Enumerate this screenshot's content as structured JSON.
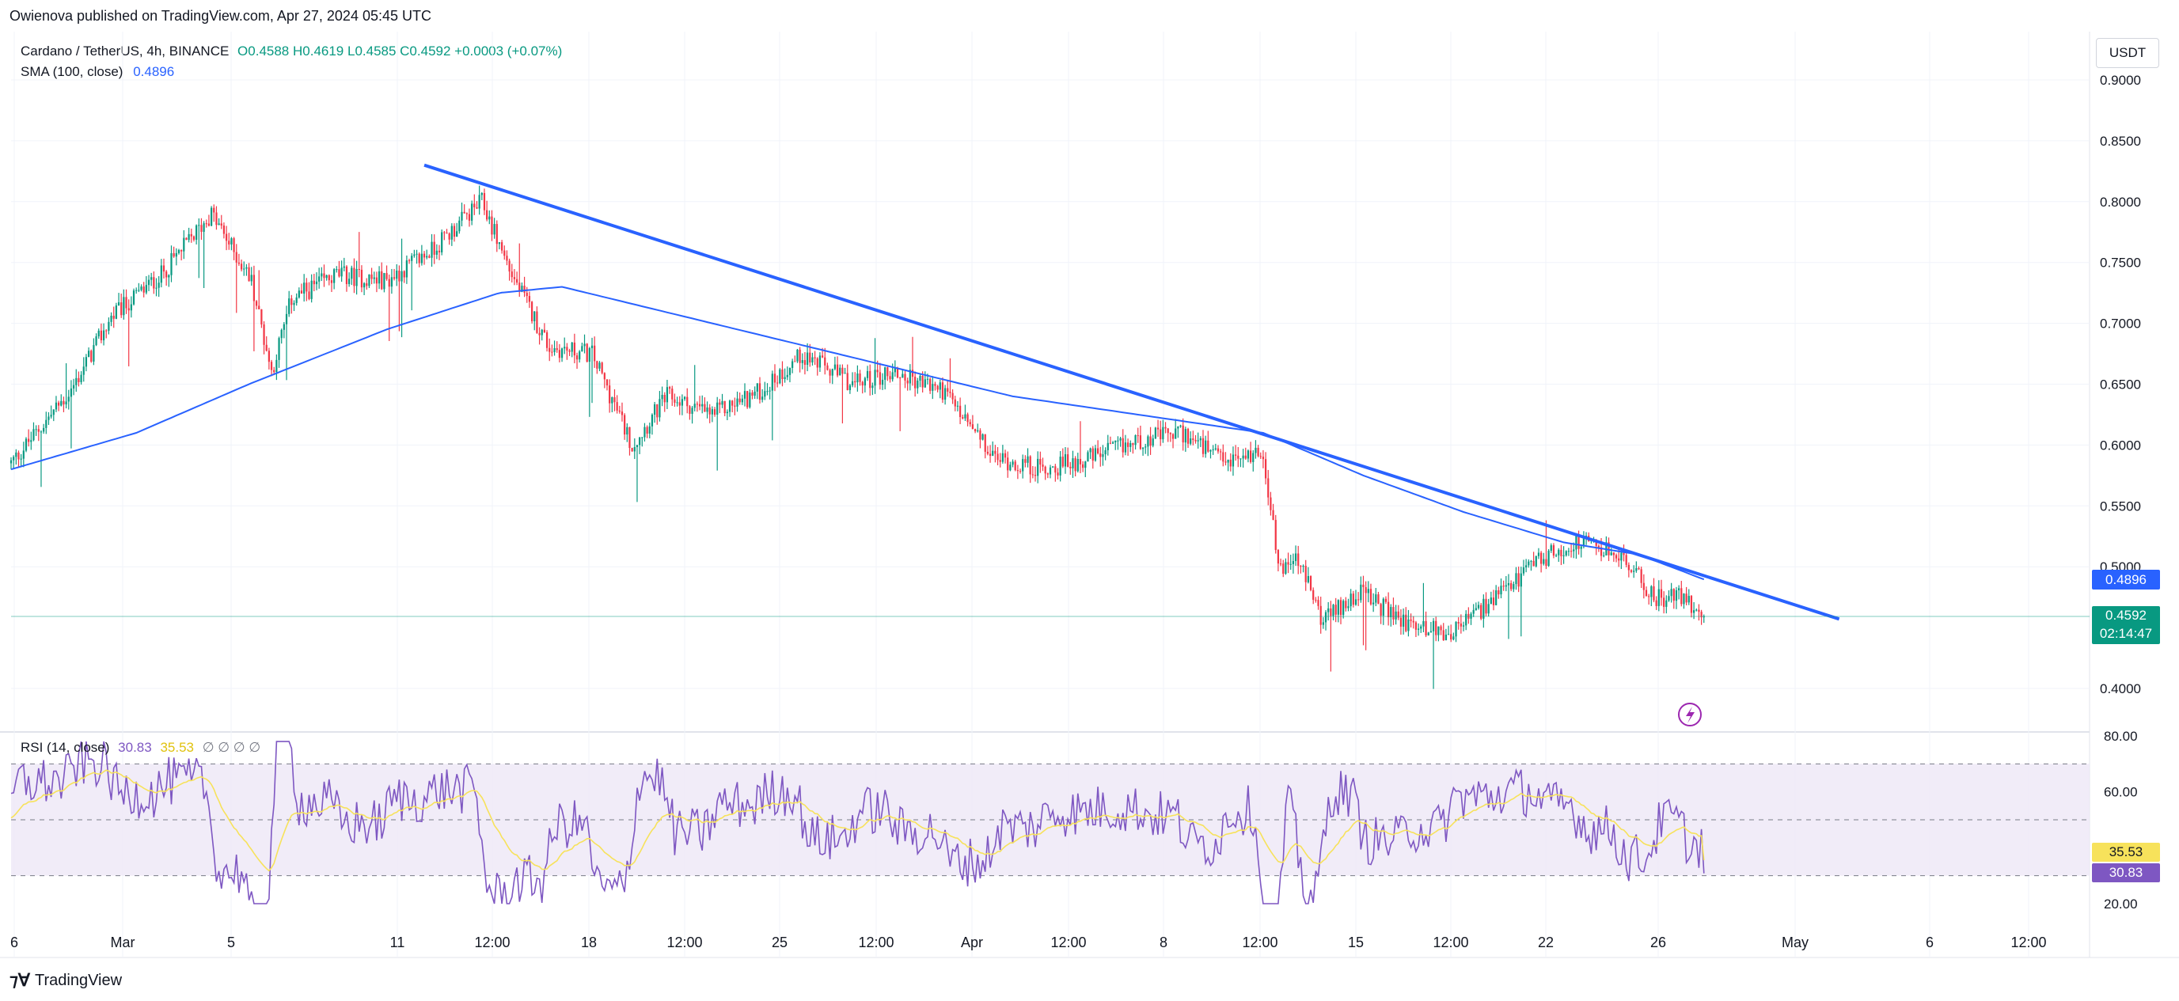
{
  "header": {
    "attribution": "Owienova published on TradingView.com, Apr 27, 2024 05:45 UTC",
    "symbol_title": "Cardano / TetherUS, 4h, BINANCE",
    "ohlc": "O0.4588 H0.4619 L0.4585 C0.4592 +0.0003 (+0.07%)",
    "sma_label": "SMA (100, close)",
    "sma_value": "0.4896",
    "currency": "USDT"
  },
  "rsi_legend": {
    "label": "RSI (14, close)",
    "rsi_value": "30.83",
    "rsi_ma_value": "35.53",
    "extra": "∅ ∅ ∅ ∅"
  },
  "price_tags": {
    "sma": "0.4896",
    "last": "0.4592",
    "countdown": "02:14:47",
    "rsi_ma": "35.53",
    "rsi": "30.83"
  },
  "footer": {
    "brand": "TradingView"
  },
  "colors": {
    "up": "#089981",
    "down": "#f23645",
    "sma": "#2962ff",
    "trendline": "#2962ff",
    "rsi": "#7e57c2",
    "rsi_ma": "#f7e25b",
    "rsi_band": "#ede7f6"
  },
  "chart_data": [
    {
      "type": "candlestick",
      "title": "Cardano / TetherUS, 4h, BINANCE",
      "ylabel": "USDT",
      "ylim": [
        0.37,
        0.93
      ],
      "y_ticks": [
        "0.9000",
        "0.8500",
        "0.8000",
        "0.7500",
        "0.7000",
        "0.6500",
        "0.6000",
        "0.5500",
        "0.5000",
        "0.4000"
      ],
      "x_ticks": [
        "6",
        "Mar",
        "5",
        "11",
        "12:00",
        "18",
        "12:00",
        "25",
        "12:00",
        "Apr",
        "12:00",
        "8",
        "12:00",
        "15",
        "12:00",
        "22",
        "26",
        "May",
        "6",
        "12:00"
      ],
      "price_anchors": [
        {
          "t": 0,
          "c": 0.585
        },
        {
          "t": 12,
          "c": 0.615
        },
        {
          "t": 24,
          "c": 0.645
        },
        {
          "t": 40,
          "c": 0.705
        },
        {
          "t": 60,
          "c": 0.74
        },
        {
          "t": 80,
          "c": 0.79
        },
        {
          "t": 96,
          "c": 0.735
        },
        {
          "t": 104,
          "c": 0.66
        },
        {
          "t": 112,
          "c": 0.72
        },
        {
          "t": 130,
          "c": 0.74
        },
        {
          "t": 150,
          "c": 0.735
        },
        {
          "t": 168,
          "c": 0.76
        },
        {
          "t": 188,
          "c": 0.8
        },
        {
          "t": 200,
          "c": 0.74
        },
        {
          "t": 215,
          "c": 0.68
        },
        {
          "t": 232,
          "c": 0.675
        },
        {
          "t": 248,
          "c": 0.6
        },
        {
          "t": 262,
          "c": 0.64
        },
        {
          "t": 280,
          "c": 0.625
        },
        {
          "t": 300,
          "c": 0.645
        },
        {
          "t": 316,
          "c": 0.675
        },
        {
          "t": 336,
          "c": 0.65
        },
        {
          "t": 352,
          "c": 0.66
        },
        {
          "t": 372,
          "c": 0.645
        },
        {
          "t": 392,
          "c": 0.59
        },
        {
          "t": 412,
          "c": 0.58
        },
        {
          "t": 432,
          "c": 0.59
        },
        {
          "t": 452,
          "c": 0.605
        },
        {
          "t": 468,
          "c": 0.61
        },
        {
          "t": 484,
          "c": 0.585
        },
        {
          "t": 500,
          "c": 0.595
        },
        {
          "t": 506,
          "c": 0.5
        },
        {
          "t": 514,
          "c": 0.505
        },
        {
          "t": 524,
          "c": 0.455
        },
        {
          "t": 538,
          "c": 0.48
        },
        {
          "t": 556,
          "c": 0.455
        },
        {
          "t": 574,
          "c": 0.445
        },
        {
          "t": 594,
          "c": 0.475
        },
        {
          "t": 610,
          "c": 0.505
        },
        {
          "t": 626,
          "c": 0.52
        },
        {
          "t": 642,
          "c": 0.51
        },
        {
          "t": 656,
          "c": 0.475
        },
        {
          "t": 668,
          "c": 0.475
        },
        {
          "t": 676,
          "c": 0.46
        }
      ],
      "sma_anchors": [
        {
          "t": 0,
          "v": 0.58
        },
        {
          "t": 50,
          "v": 0.61
        },
        {
          "t": 95,
          "v": 0.65
        },
        {
          "t": 150,
          "v": 0.695
        },
        {
          "t": 195,
          "v": 0.725
        },
        {
          "t": 220,
          "v": 0.73
        },
        {
          "t": 250,
          "v": 0.715
        },
        {
          "t": 300,
          "v": 0.69
        },
        {
          "t": 350,
          "v": 0.665
        },
        {
          "t": 400,
          "v": 0.64
        },
        {
          "t": 450,
          "v": 0.625
        },
        {
          "t": 500,
          "v": 0.61
        },
        {
          "t": 540,
          "v": 0.575
        },
        {
          "t": 580,
          "v": 0.545
        },
        {
          "t": 620,
          "v": 0.52
        },
        {
          "t": 650,
          "v": 0.51
        },
        {
          "t": 676,
          "v": 0.4896
        }
      ],
      "trendline": [
        {
          "t": 165,
          "v": 0.83
        },
        {
          "t": 730,
          "v": 0.457
        }
      ],
      "last_price": 0.4592,
      "sma_value": 0.4896,
      "total_bars": 676,
      "x_range_bars": [
        0,
        830
      ]
    },
    {
      "type": "line",
      "title": "RSI (14, close)",
      "ylim": [
        17,
        83
      ],
      "y_ticks": [
        "80.00",
        "60.00",
        "20.00"
      ],
      "band": [
        30,
        70
      ],
      "mid": 50,
      "rsi_value": 30.83,
      "rsi_ma_value": 35.53
    }
  ]
}
